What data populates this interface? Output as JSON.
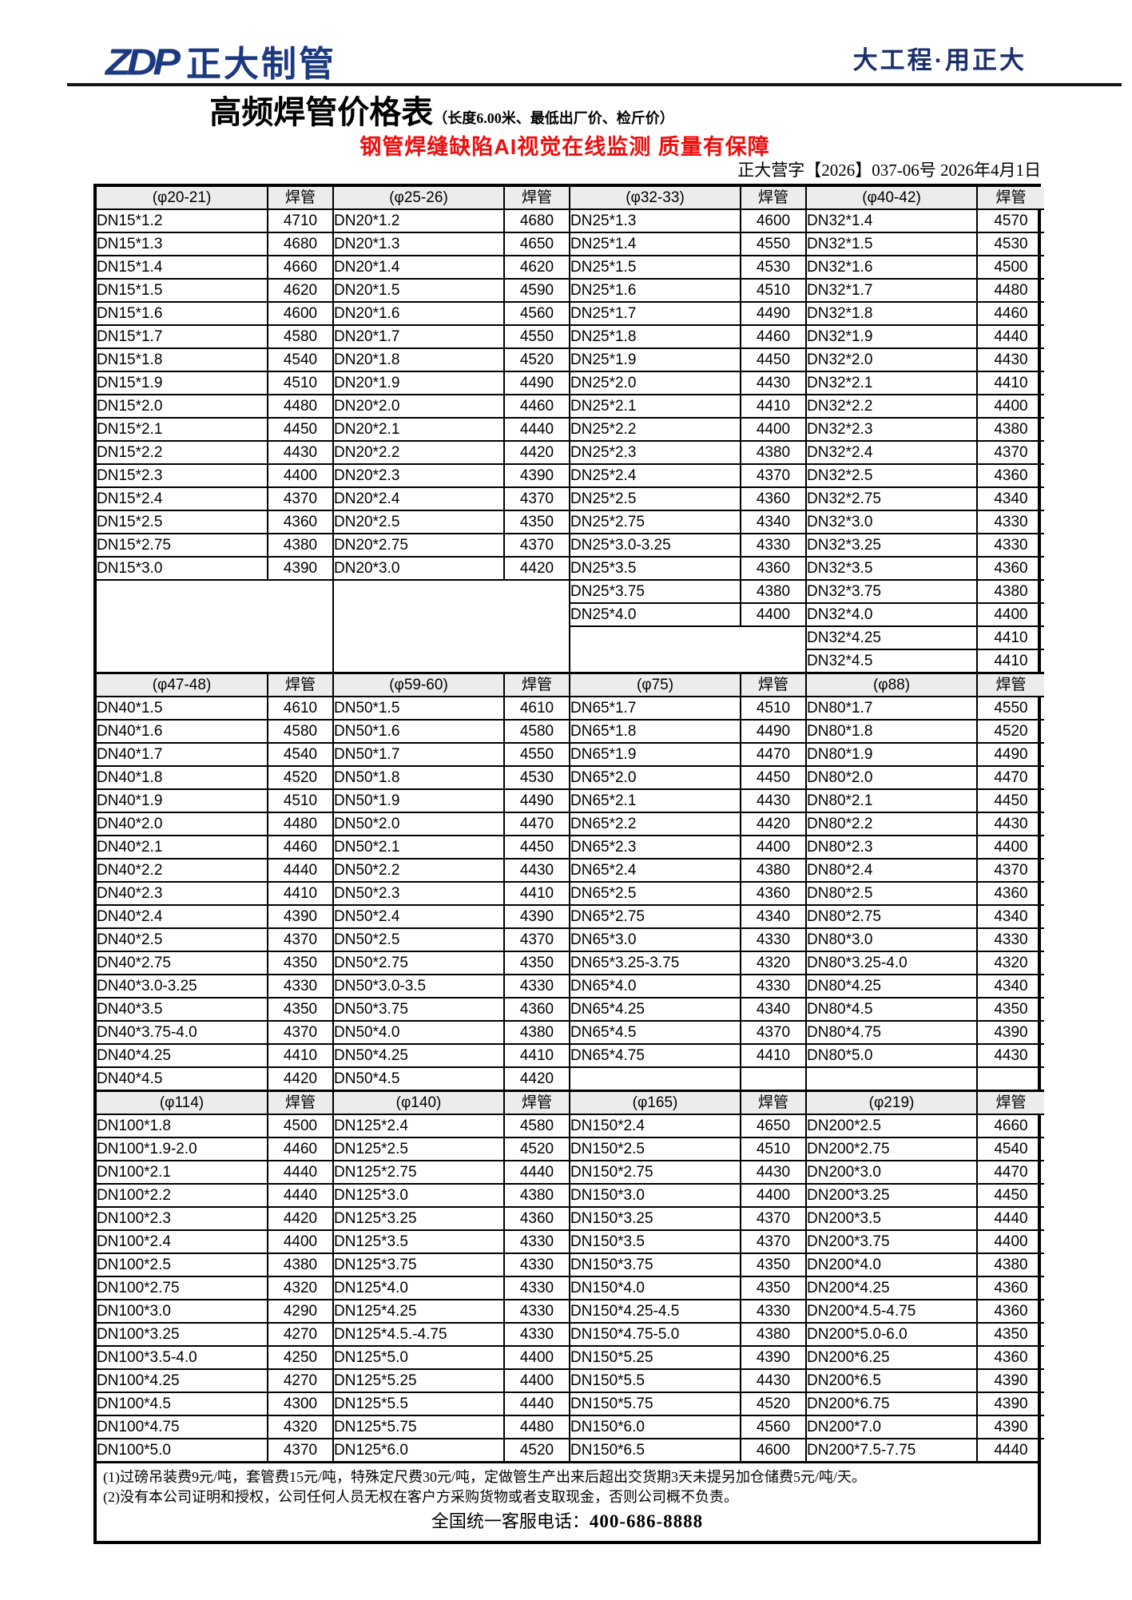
{
  "header": {
    "logo_mark": "ZDP",
    "logo_name": "正大制管",
    "slogan": "大工程·用正大"
  },
  "title": {
    "main": "高频焊管价格表",
    "note": "（长度6.00米、最低出厂价、检斤价）",
    "subtitle_red": "钢管焊缝缺陷AI视觉在线监测 质量有保障",
    "doc_no": "正大营字【2026】037-06号 2026年4月1日"
  },
  "colors": {
    "brand_blue": "#1d3a80",
    "accent_red": "#ee0e0e",
    "header_cell_bg": "#ececec"
  },
  "table": {
    "price_header": "焊管",
    "sections": [
      {
        "merge_trailing_blanks": true,
        "columns": [
          {
            "header": "(φ20-21)",
            "rows": [
              [
                "DN15*1.2",
                "4710"
              ],
              [
                "DN15*1.3",
                "4680"
              ],
              [
                "DN15*1.4",
                "4660"
              ],
              [
                "DN15*1.5",
                "4620"
              ],
              [
                "DN15*1.6",
                "4600"
              ],
              [
                "DN15*1.7",
                "4580"
              ],
              [
                "DN15*1.8",
                "4540"
              ],
              [
                "DN15*1.9",
                "4510"
              ],
              [
                "DN15*2.0",
                "4480"
              ],
              [
                "DN15*2.1",
                "4450"
              ],
              [
                "DN15*2.2",
                "4430"
              ],
              [
                "DN15*2.3",
                "4400"
              ],
              [
                "DN15*2.4",
                "4370"
              ],
              [
                "DN15*2.5",
                "4360"
              ],
              [
                "DN15*2.75",
                "4380"
              ],
              [
                "DN15*3.0",
                "4390"
              ]
            ]
          },
          {
            "header": "(φ25-26)",
            "rows": [
              [
                "DN20*1.2",
                "4680"
              ],
              [
                "DN20*1.3",
                "4650"
              ],
              [
                "DN20*1.4",
                "4620"
              ],
              [
                "DN20*1.5",
                "4590"
              ],
              [
                "DN20*1.6",
                "4560"
              ],
              [
                "DN20*1.7",
                "4550"
              ],
              [
                "DN20*1.8",
                "4520"
              ],
              [
                "DN20*1.9",
                "4490"
              ],
              [
                "DN20*2.0",
                "4460"
              ],
              [
                "DN20*2.1",
                "4440"
              ],
              [
                "DN20*2.2",
                "4420"
              ],
              [
                "DN20*2.3",
                "4390"
              ],
              [
                "DN20*2.4",
                "4370"
              ],
              [
                "DN20*2.5",
                "4350"
              ],
              [
                "DN20*2.75",
                "4370"
              ],
              [
                "DN20*3.0",
                "4420"
              ]
            ]
          },
          {
            "header": "(φ32-33)",
            "rows": [
              [
                "DN25*1.3",
                "4600"
              ],
              [
                "DN25*1.4",
                "4550"
              ],
              [
                "DN25*1.5",
                "4530"
              ],
              [
                "DN25*1.6",
                "4510"
              ],
              [
                "DN25*1.7",
                "4490"
              ],
              [
                "DN25*1.8",
                "4460"
              ],
              [
                "DN25*1.9",
                "4450"
              ],
              [
                "DN25*2.0",
                "4430"
              ],
              [
                "DN25*2.1",
                "4410"
              ],
              [
                "DN25*2.2",
                "4400"
              ],
              [
                "DN25*2.3",
                "4380"
              ],
              [
                "DN25*2.4",
                "4370"
              ],
              [
                "DN25*2.5",
                "4360"
              ],
              [
                "DN25*2.75",
                "4340"
              ],
              [
                "DN25*3.0-3.25",
                "4330"
              ],
              [
                "DN25*3.5",
                "4360"
              ],
              [
                "DN25*3.75",
                "4380"
              ],
              [
                "DN25*4.0",
                "4400"
              ]
            ]
          },
          {
            "header": "(φ40-42)",
            "rows": [
              [
                "DN32*1.4",
                "4570"
              ],
              [
                "DN32*1.5",
                "4530"
              ],
              [
                "DN32*1.6",
                "4500"
              ],
              [
                "DN32*1.7",
                "4480"
              ],
              [
                "DN32*1.8",
                "4460"
              ],
              [
                "DN32*1.9",
                "4440"
              ],
              [
                "DN32*2.0",
                "4430"
              ],
              [
                "DN32*2.1",
                "4410"
              ],
              [
                "DN32*2.2",
                "4400"
              ],
              [
                "DN32*2.3",
                "4380"
              ],
              [
                "DN32*2.4",
                "4370"
              ],
              [
                "DN32*2.5",
                "4360"
              ],
              [
                "DN32*2.75",
                "4340"
              ],
              [
                "DN32*3.0",
                "4330"
              ],
              [
                "DN32*3.25",
                "4330"
              ],
              [
                "DN32*3.5",
                "4360"
              ],
              [
                "DN32*3.75",
                "4380"
              ],
              [
                "DN32*4.0",
                "4400"
              ],
              [
                "DN32*4.25",
                "4410"
              ],
              [
                "DN32*4.5",
                "4410"
              ]
            ]
          }
        ]
      },
      {
        "merge_trailing_blanks": false,
        "columns": [
          {
            "header": "(φ47-48)",
            "rows": [
              [
                "DN40*1.5",
                "4610"
              ],
              [
                "DN40*1.6",
                "4580"
              ],
              [
                "DN40*1.7",
                "4540"
              ],
              [
                "DN40*1.8",
                "4520"
              ],
              [
                "DN40*1.9",
                "4510"
              ],
              [
                "DN40*2.0",
                "4480"
              ],
              [
                "DN40*2.1",
                "4460"
              ],
              [
                "DN40*2.2",
                "4440"
              ],
              [
                "DN40*2.3",
                "4410"
              ],
              [
                "DN40*2.4",
                "4390"
              ],
              [
                "DN40*2.5",
                "4370"
              ],
              [
                "DN40*2.75",
                "4350"
              ],
              [
                "DN40*3.0-3.25",
                "4330"
              ],
              [
                "DN40*3.5",
                "4350"
              ],
              [
                "DN40*3.75-4.0",
                "4370"
              ],
              [
                "DN40*4.25",
                "4410"
              ],
              [
                "DN40*4.5",
                "4420"
              ]
            ]
          },
          {
            "header": "(φ59-60)",
            "rows": [
              [
                "DN50*1.5",
                "4610"
              ],
              [
                "DN50*1.6",
                "4580"
              ],
              [
                "DN50*1.7",
                "4550"
              ],
              [
                "DN50*1.8",
                "4530"
              ],
              [
                "DN50*1.9",
                "4490"
              ],
              [
                "DN50*2.0",
                "4470"
              ],
              [
                "DN50*2.1",
                "4450"
              ],
              [
                "DN50*2.2",
                "4430"
              ],
              [
                "DN50*2.3",
                "4410"
              ],
              [
                "DN50*2.4",
                "4390"
              ],
              [
                "DN50*2.5",
                "4370"
              ],
              [
                "DN50*2.75",
                "4350"
              ],
              [
                "DN50*3.0-3.5",
                "4330"
              ],
              [
                "DN50*3.75",
                "4360"
              ],
              [
                "DN50*4.0",
                "4380"
              ],
              [
                "DN50*4.25",
                "4410"
              ],
              [
                "DN50*4.5",
                "4420"
              ]
            ]
          },
          {
            "header": "(φ75)",
            "rows": [
              [
                "DN65*1.7",
                "4510"
              ],
              [
                "DN65*1.8",
                "4490"
              ],
              [
                "DN65*1.9",
                "4470"
              ],
              [
                "DN65*2.0",
                "4450"
              ],
              [
                "DN65*2.1",
                "4430"
              ],
              [
                "DN65*2.2",
                "4420"
              ],
              [
                "DN65*2.3",
                "4400"
              ],
              [
                "DN65*2.4",
                "4380"
              ],
              [
                "DN65*2.5",
                "4360"
              ],
              [
                "DN65*2.75",
                "4340"
              ],
              [
                "DN65*3.0",
                "4330"
              ],
              [
                "DN65*3.25-3.75",
                "4320"
              ],
              [
                "DN65*4.0",
                "4330"
              ],
              [
                "DN65*4.25",
                "4340"
              ],
              [
                "DN65*4.5",
                "4370"
              ],
              [
                "DN65*4.75",
                "4410"
              ]
            ]
          },
          {
            "header": "(φ88)",
            "rows": [
              [
                "DN80*1.7",
                "4550"
              ],
              [
                "DN80*1.8",
                "4520"
              ],
              [
                "DN80*1.9",
                "4490"
              ],
              [
                "DN80*2.0",
                "4470"
              ],
              [
                "DN80*2.1",
                "4450"
              ],
              [
                "DN80*2.2",
                "4430"
              ],
              [
                "DN80*2.3",
                "4400"
              ],
              [
                "DN80*2.4",
                "4370"
              ],
              [
                "DN80*2.5",
                "4360"
              ],
              [
                "DN80*2.75",
                "4340"
              ],
              [
                "DN80*3.0",
                "4330"
              ],
              [
                "DN80*3.25-4.0",
                "4320"
              ],
              [
                "DN80*4.25",
                "4340"
              ],
              [
                "DN80*4.5",
                "4350"
              ],
              [
                "DN80*4.75",
                "4390"
              ],
              [
                "DN80*5.0",
                "4430"
              ]
            ]
          }
        ]
      },
      {
        "merge_trailing_blanks": false,
        "columns": [
          {
            "header": "(φ114)",
            "rows": [
              [
                "DN100*1.8",
                "4500"
              ],
              [
                "DN100*1.9-2.0",
                "4460"
              ],
              [
                "DN100*2.1",
                "4440"
              ],
              [
                "DN100*2.2",
                "4440"
              ],
              [
                "DN100*2.3",
                "4420"
              ],
              [
                "DN100*2.4",
                "4400"
              ],
              [
                "DN100*2.5",
                "4380"
              ],
              [
                "DN100*2.75",
                "4320"
              ],
              [
                "DN100*3.0",
                "4290"
              ],
              [
                "DN100*3.25",
                "4270"
              ],
              [
                "DN100*3.5-4.0",
                "4250"
              ],
              [
                "DN100*4.25",
                "4270"
              ],
              [
                "DN100*4.5",
                "4300"
              ],
              [
                "DN100*4.75",
                "4320"
              ],
              [
                "DN100*5.0",
                "4370"
              ]
            ]
          },
          {
            "header": "(φ140)",
            "rows": [
              [
                "DN125*2.4",
                "4580"
              ],
              [
                "DN125*2.5",
                "4520"
              ],
              [
                "DN125*2.75",
                "4440"
              ],
              [
                "DN125*3.0",
                "4380"
              ],
              [
                "DN125*3.25",
                "4360"
              ],
              [
                "DN125*3.5",
                "4330"
              ],
              [
                "DN125*3.75",
                "4330"
              ],
              [
                "DN125*4.0",
                "4330"
              ],
              [
                "DN125*4.25",
                "4330"
              ],
              [
                "DN125*4.5.-4.75",
                "4330"
              ],
              [
                "DN125*5.0",
                "4400"
              ],
              [
                "DN125*5.25",
                "4400"
              ],
              [
                "DN125*5.5",
                "4440"
              ],
              [
                "DN125*5.75",
                "4480"
              ],
              [
                "DN125*6.0",
                "4520"
              ]
            ]
          },
          {
            "header": "(φ165)",
            "rows": [
              [
                "DN150*2.4",
                "4650"
              ],
              [
                "DN150*2.5",
                "4510"
              ],
              [
                "DN150*2.75",
                "4430"
              ],
              [
                "DN150*3.0",
                "4400"
              ],
              [
                "DN150*3.25",
                "4370"
              ],
              [
                "DN150*3.5",
                "4370"
              ],
              [
                "DN150*3.75",
                "4350"
              ],
              [
                "DN150*4.0",
                "4350"
              ],
              [
                "DN150*4.25-4.5",
                "4330"
              ],
              [
                "DN150*4.75-5.0",
                "4380"
              ],
              [
                "DN150*5.25",
                "4390"
              ],
              [
                "DN150*5.5",
                "4430"
              ],
              [
                "DN150*5.75",
                "4520"
              ],
              [
                "DN150*6.0",
                "4560"
              ],
              [
                "DN150*6.5",
                "4600"
              ]
            ]
          },
          {
            "header": "(φ219)",
            "rows": [
              [
                "DN200*2.5",
                "4660"
              ],
              [
                "DN200*2.75",
                "4540"
              ],
              [
                "DN200*3.0",
                "4470"
              ],
              [
                "DN200*3.25",
                "4450"
              ],
              [
                "DN200*3.5",
                "4440"
              ],
              [
                "DN200*3.75",
                "4400"
              ],
              [
                "DN200*4.0",
                "4380"
              ],
              [
                "DN200*4.25",
                "4360"
              ],
              [
                "DN200*4.5-4.75",
                "4360"
              ],
              [
                "DN200*5.0-6.0",
                "4350"
              ],
              [
                "DN200*6.25",
                "4360"
              ],
              [
                "DN200*6.5",
                "4390"
              ],
              [
                "DN200*6.75",
                "4390"
              ],
              [
                "DN200*7.0",
                "4390"
              ],
              [
                "DN200*7.5-7.75",
                "4440"
              ]
            ]
          }
        ]
      }
    ]
  },
  "footer": {
    "note1": "(1)过磅吊装费9元/吨，套管费15元/吨，特殊定尺费30元/吨，定做管生产出来后超出交货期3天未提另加仓储费5元/吨/天。",
    "note2": "(2)没有本公司证明和授权，公司任何人员无权在客户方采购货物或者支取现金，否则公司概不负责。",
    "hotline_label": "全国统一客服电话：",
    "hotline_number": "400-686-8888"
  }
}
